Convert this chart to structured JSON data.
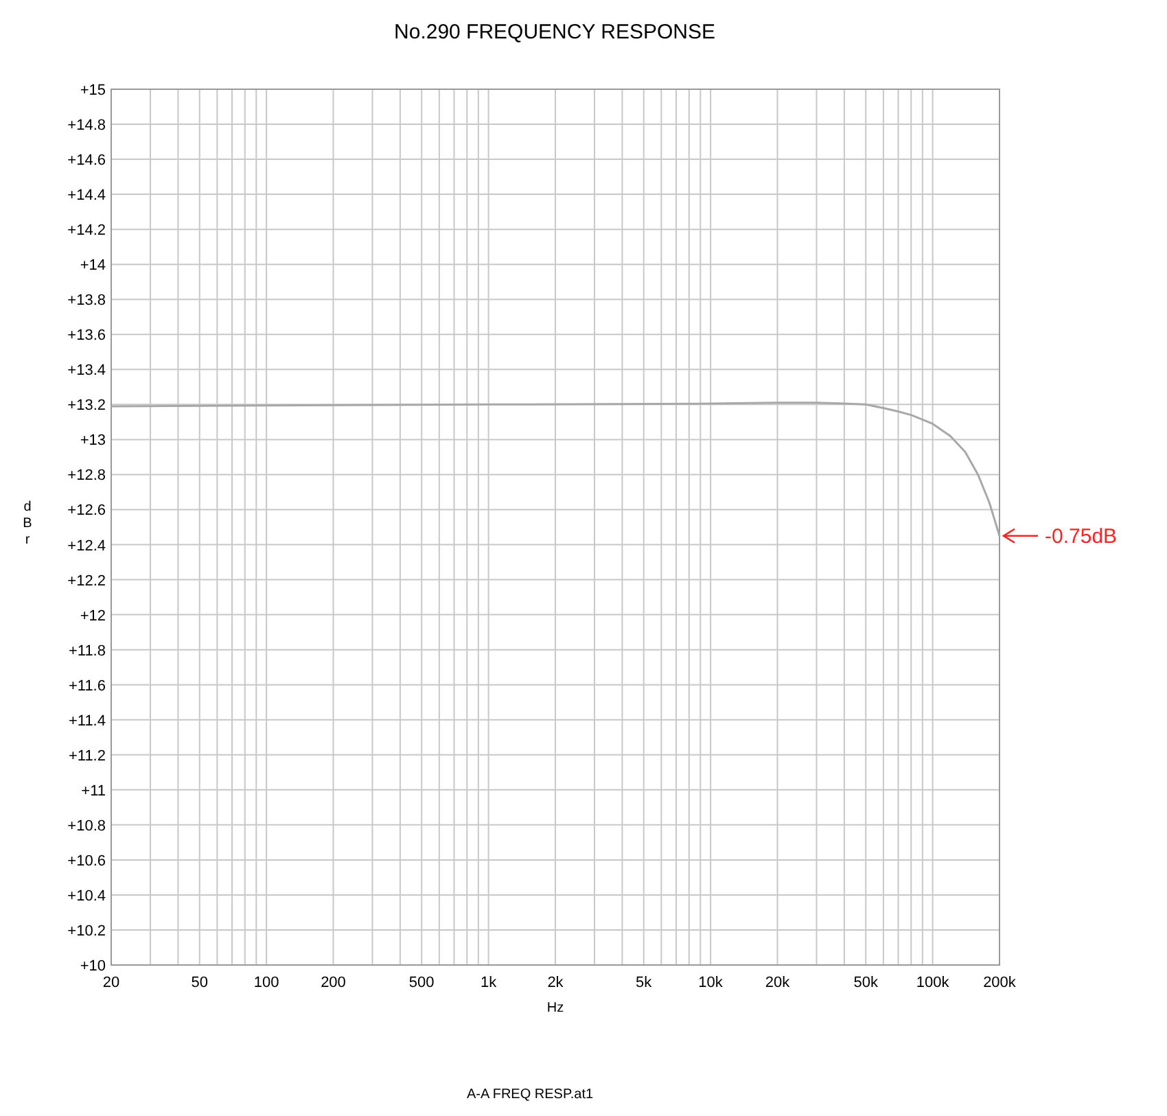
{
  "chart_data": {
    "type": "line",
    "title": "No.290 FREQUENCY RESPONSE",
    "xlabel": "Hz",
    "ylabel": "dBr",
    "log": "x",
    "grid": true,
    "marker": "none",
    "line_style": "solid",
    "x": [
      20,
      100,
      1000,
      10000,
      20000,
      30000,
      40000,
      50000,
      60000,
      70000,
      80000,
      100000,
      120000,
      140000,
      160000,
      180000,
      200000
    ],
    "series": [
      {
        "color": "#a8a8a8",
        "values": [
          13.19,
          13.195,
          13.2,
          13.205,
          13.21,
          13.21,
          13.205,
          13.2,
          13.18,
          13.16,
          13.14,
          13.09,
          13.02,
          12.93,
          12.8,
          12.64,
          12.45
        ]
      }
    ],
    "xlim": [
      20,
      200000
    ],
    "xticks": [
      {
        "value": 20,
        "label": "20"
      },
      {
        "value": 30,
        "label": null
      },
      {
        "value": 40,
        "label": null
      },
      {
        "value": 50,
        "label": "50"
      },
      {
        "value": 60,
        "label": null
      },
      {
        "value": 70,
        "label": null
      },
      {
        "value": 80,
        "label": null
      },
      {
        "value": 90,
        "label": null
      },
      {
        "value": 100,
        "label": "100"
      },
      {
        "value": 200,
        "label": "200"
      },
      {
        "value": 300,
        "label": null
      },
      {
        "value": 400,
        "label": null
      },
      {
        "value": 500,
        "label": "500"
      },
      {
        "value": 600,
        "label": null
      },
      {
        "value": 700,
        "label": null
      },
      {
        "value": 800,
        "label": null
      },
      {
        "value": 900,
        "label": null
      },
      {
        "value": 1000,
        "label": "1k"
      },
      {
        "value": 2000,
        "label": "2k"
      },
      {
        "value": 3000,
        "label": null
      },
      {
        "value": 4000,
        "label": null
      },
      {
        "value": 5000,
        "label": "5k"
      },
      {
        "value": 6000,
        "label": null
      },
      {
        "value": 7000,
        "label": null
      },
      {
        "value": 8000,
        "label": null
      },
      {
        "value": 9000,
        "label": null
      },
      {
        "value": 10000,
        "label": "10k"
      },
      {
        "value": 20000,
        "label": "20k"
      },
      {
        "value": 30000,
        "label": null
      },
      {
        "value": 40000,
        "label": null
      },
      {
        "value": 50000,
        "label": "50k"
      },
      {
        "value": 60000,
        "label": null
      },
      {
        "value": 70000,
        "label": null
      },
      {
        "value": 80000,
        "label": null
      },
      {
        "value": 90000,
        "label": null
      },
      {
        "value": 100000,
        "label": "100k"
      },
      {
        "value": 200000,
        "label": "200k"
      }
    ],
    "ylim": [
      10,
      15
    ],
    "yticks": [
      {
        "value": 10,
        "label": "+10"
      },
      {
        "value": 10.2,
        "label": "+10.2"
      },
      {
        "value": 10.4,
        "label": "+10.4"
      },
      {
        "value": 10.6,
        "label": "+10.6"
      },
      {
        "value": 10.8,
        "label": "+10.8"
      },
      {
        "value": 11,
        "label": "+11"
      },
      {
        "value": 11.2,
        "label": "+11.2"
      },
      {
        "value": 11.4,
        "label": "+11.4"
      },
      {
        "value": 11.6,
        "label": "+11.6"
      },
      {
        "value": 11.8,
        "label": "+11.8"
      },
      {
        "value": 12,
        "label": "+12"
      },
      {
        "value": 12.2,
        "label": "+12.2"
      },
      {
        "value": 12.4,
        "label": "+12.4"
      },
      {
        "value": 12.6,
        "label": "+12.6"
      },
      {
        "value": 12.8,
        "label": "+12.8"
      },
      {
        "value": 13,
        "label": "+13"
      },
      {
        "value": 13.2,
        "label": "+13.2"
      },
      {
        "value": 13.4,
        "label": "+13.4"
      },
      {
        "value": 13.6,
        "label": "+13.6"
      },
      {
        "value": 13.8,
        "label": "+13.8"
      },
      {
        "value": 14,
        "label": "+14"
      },
      {
        "value": 14.2,
        "label": "+14.2"
      },
      {
        "value": 14.4,
        "label": "+14.4"
      },
      {
        "value": 14.6,
        "label": "+14.6"
      },
      {
        "value": 14.8,
        "label": "+14.8"
      },
      {
        "value": 15,
        "label": "+15"
      }
    ],
    "annotations": [
      {
        "text": "-0.75dB",
        "x": 200000,
        "y": 12.45
      },
      "A-A FREQ RESP.at1"
    ]
  }
}
